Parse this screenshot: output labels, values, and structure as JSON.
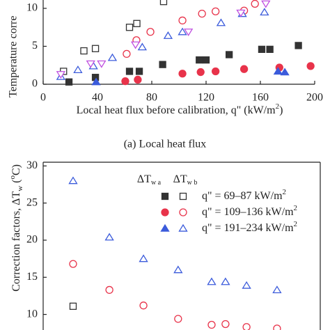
{
  "charts": [
    {
      "chart_data": {
        "type": "scatter",
        "y_label": "Temperature corre",
        "x_label": {
          "text": "Local heat flux before calibration, q\" (kW/m",
          "sup": "2",
          "end": ")"
        },
        "caption": "(a) Local heat flux",
        "xlim": [
          0,
          200
        ],
        "xticks": [
          0,
          40,
          80,
          120,
          160,
          200
        ],
        "ylim": [
          0,
          11.1
        ],
        "yticks": [
          0,
          5,
          10
        ],
        "series": [
          {
            "marker": "square",
            "filled": false,
            "color": "#333333",
            "x": [
              15,
              30,
              38.5,
              63.6,
              69,
              88.7
            ],
            "values": [
              1.7,
              4.4,
              4.7,
              7.5,
              8,
              10.9
            ]
          },
          {
            "marker": "square",
            "filled": true,
            "color": "#333333",
            "x": [
              19,
              38.5,
              63.6,
              70.8,
              88,
              115,
              120,
              137,
              161,
              167,
              188
            ],
            "values": [
              0.3,
              0.9,
              1.7,
              1.7,
              2.6,
              3.2,
              3.2,
              3.9,
              4.6,
              4.6,
              5.1
            ]
          },
          {
            "marker": "circle",
            "filled": false,
            "color": "#e8334a",
            "x": [
              61.5,
              68.7,
              79,
              102.6,
              117,
              127,
              148,
              156
            ],
            "values": [
              4.0,
              5.8,
              6.9,
              8.4,
              9.3,
              9.6,
              9.7,
              10.6
            ]
          },
          {
            "marker": "circle",
            "filled": true,
            "color": "#e8334a",
            "x": [
              60.5,
              69.7,
              102.6,
              116,
              127,
              148,
              174,
              197
            ],
            "values": [
              0.4,
              0.6,
              1.4,
              1.6,
              1.7,
              2.0,
              2.2,
              2.4
            ]
          },
          {
            "marker": "triangle",
            "filled": false,
            "color": "#3b5bdb",
            "x": [
              13,
              25.6,
              37,
              51,
              73,
              92,
              102.6,
              131,
              146.7,
              163
            ],
            "values": [
              1.0,
              1.9,
              2.4,
              3.5,
              4.9,
              6.4,
              6.9,
              8.1,
              9.3,
              9.5
            ]
          },
          {
            "marker": "triangle",
            "filled": true,
            "color": "#3b5bdb",
            "x": [
              39,
              173,
              178
            ],
            "values": [
              0.3,
              1.7,
              1.6
            ]
          },
          {
            "marker": "triangle-down",
            "filled": false,
            "color": "#c050e0",
            "x": [
              13,
              35,
              43,
              68,
              107,
              145.6,
              164
            ],
            "values": [
              1.3,
              2.7,
              2.7,
              5.2,
              6.9,
              9.4,
              10.6
            ]
          }
        ]
      }
    },
    {
      "chart_data": {
        "type": "scatter",
        "y_label": {
          "text": "Correction factors, ΔT",
          "sub": "w",
          "mid": " (",
          "sup": "o",
          "end": "C)"
        },
        "xlim": [
          0,
          100
        ],
        "ylim": [
          7.9,
          30.5
        ],
        "yticks": [
          10,
          15,
          20,
          25,
          30
        ],
        "legend_headers": [
          {
            "text": "ΔT",
            "sub": "w a"
          },
          {
            "text": "ΔT",
            "sub": "w b"
          }
        ],
        "series": [
          {
            "name": "q\" = 69–87 kW/m",
            "name_sup": "2",
            "marker": "square",
            "color": "#333333",
            "x": [
              10.8
            ],
            "values": [
              11.1
            ]
          },
          {
            "name": "q\" = 109–136 kW/m",
            "name_sup": "2",
            "marker": "circle",
            "color": "#e8334a",
            "x": [
              10.8,
              23.9,
              36.2,
              48.7,
              60.8,
              65.8,
              73.4,
              84.4
            ],
            "values": [
              16.8,
              13.3,
              11.2,
              9.4,
              8.6,
              8.7,
              8.3,
              8.1
            ]
          },
          {
            "name": "q\" = 191–234 kW/m",
            "name_sup": "2",
            "marker": "triangle",
            "color": "#3b5bdb",
            "x": [
              10.8,
              23.9,
              36.2,
              48.7,
              60.8,
              65.8,
              73.4,
              84.4
            ],
            "values": [
              28.0,
              20.4,
              17.5,
              16.0,
              14.4,
              14.4,
              13.9,
              13.3
            ]
          }
        ]
      }
    }
  ]
}
